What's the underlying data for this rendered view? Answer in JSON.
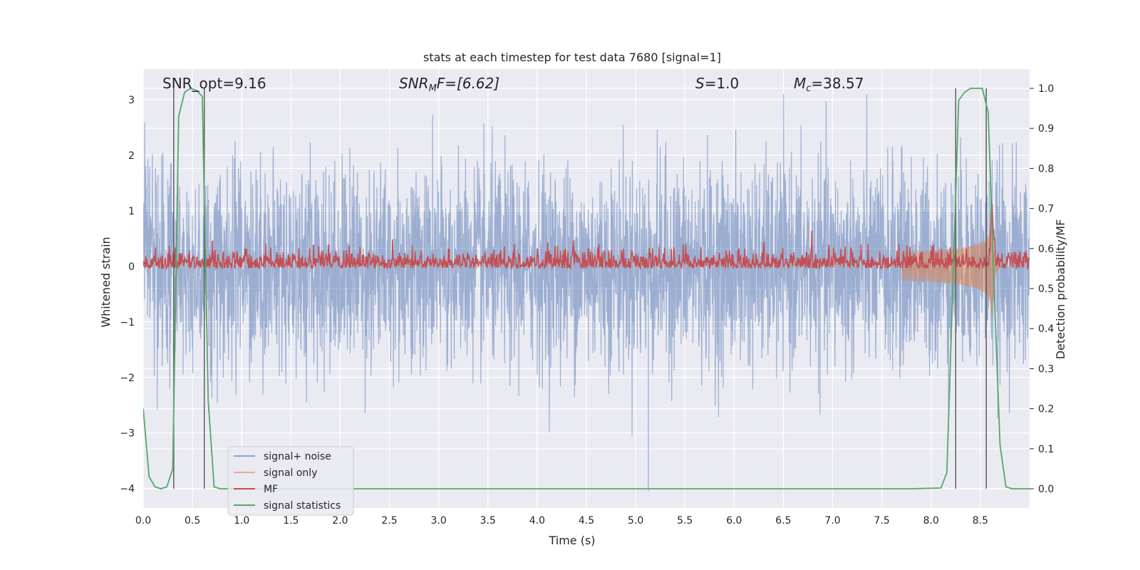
{
  "chart_data": {
    "type": "line",
    "title": "stats at each timestep for test data 7680 [signal=1]",
    "xlabel": "Time (s)",
    "ylabel": "Whitened strain",
    "y2label": "Detection probability/MF",
    "xlim": [
      0,
      9.0
    ],
    "ylim": [
      -4.35,
      3.55
    ],
    "y2lim": [
      -0.048,
      1.048
    ],
    "xticks": [
      "0.0",
      "0.5",
      "1.0",
      "1.5",
      "2.0",
      "2.5",
      "3.0",
      "3.5",
      "4.0",
      "4.5",
      "5.0",
      "5.5",
      "6.0",
      "6.5",
      "7.0",
      "7.5",
      "8.0",
      "8.5"
    ],
    "yticks": [
      "−4",
      "−3",
      "−2",
      "−1",
      "0",
      "1",
      "2",
      "3"
    ],
    "y2ticks": [
      "0.0",
      "0.1",
      "0.2",
      "0.3",
      "0.4",
      "0.5",
      "0.6",
      "0.7",
      "0.8",
      "0.9",
      "1.0"
    ],
    "grid": true,
    "legend_position": "lower-left",
    "annotations": {
      "snr_opt_label": "SNR_opt=9.16",
      "snr_mf_prefix": "SNR",
      "snr_mf_sub": "M",
      "snr_mf_suffix": "F=[6.62]",
      "s_prefix": "S",
      "s_suffix": "=1.0",
      "mc_prefix": "M",
      "mc_sub": "c",
      "mc_suffix": "=38.57"
    },
    "vertical_markers": [
      0.31,
      0.62,
      8.25,
      8.56
    ],
    "series": [
      {
        "name": "signal+ noise",
        "color": "#4c72b0",
        "amplitude_std": 0.9,
        "peak_range": [
          -4.1,
          3.1
        ]
      },
      {
        "name": "signal only",
        "color": "#dd8452",
        "chirp_start": 7.7,
        "merger": 8.62,
        "peak": 1.0
      },
      {
        "name": "MF",
        "color": "#c44e52",
        "axis": "right",
        "baseline": 0.6,
        "range": [
          0.55,
          0.66
        ],
        "peak_at": 8.62,
        "peak_value": 0.73
      },
      {
        "name": "signal statistics",
        "color": "#55a868",
        "axis": "right",
        "x": [
          0.0,
          0.06,
          0.12,
          0.18,
          0.24,
          0.3,
          0.36,
          0.42,
          0.48,
          0.54,
          0.6,
          0.66,
          0.72,
          0.78,
          0.84,
          1.0,
          2.0,
          3.0,
          4.0,
          5.0,
          6.0,
          7.0,
          7.8,
          8.1,
          8.16,
          8.22,
          8.28,
          8.34,
          8.4,
          8.46,
          8.52,
          8.58,
          8.64,
          8.7,
          8.76,
          8.82,
          8.88,
          8.94,
          9.0
        ],
        "y": [
          0.2,
          0.03,
          0.005,
          0.0,
          0.005,
          0.05,
          0.93,
          0.99,
          1.0,
          0.995,
          0.98,
          0.22,
          0.005,
          0.0,
          0.0,
          0.0,
          0.0,
          0.0,
          0.0,
          0.0,
          0.0,
          0.0,
          0.0,
          0.002,
          0.04,
          0.5,
          0.97,
          0.99,
          1.0,
          1.0,
          1.0,
          0.94,
          0.5,
          0.11,
          0.005,
          0.0,
          0.0,
          0.0,
          0.0
        ]
      }
    ]
  }
}
